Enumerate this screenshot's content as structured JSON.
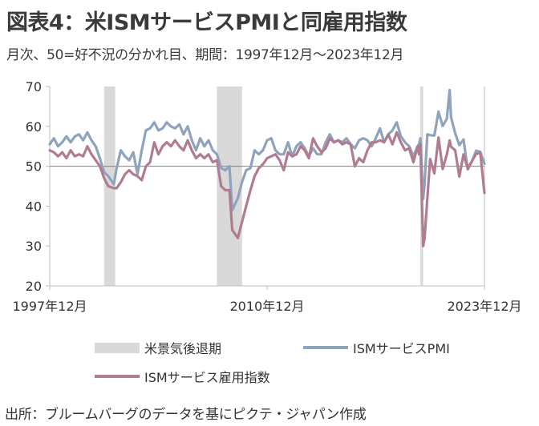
{
  "header": {
    "title": "図表4：米ISMサービスPMIと同雇用指数",
    "subtitle": "月次、50=好不況の分かれ目、期間：1997年12月～2023年12月"
  },
  "footer": {
    "source": "出所：ブルームバーグのデータを基にピクテ・ジャパン作成"
  },
  "chart_data": {
    "type": "line",
    "title": "図表4：米ISMサービスPMIと同雇用指数",
    "subtitle": "月次、50=好不況の分かれ目、期間：1997年12月～2023年12月",
    "xlim": [
      "1997-12",
      "2023-12"
    ],
    "x_tick_labels": [
      "1997年12月",
      "2010年12月",
      "2023年12月"
    ],
    "ylim": [
      20,
      70
    ],
    "y_ticks": [
      20,
      30,
      40,
      50,
      60,
      70
    ],
    "reference_line": 50,
    "grid": false,
    "legend_position": "bottom",
    "recessions": {
      "name": "米景気後退期",
      "color": "#d9d9d9",
      "periods": [
        [
          "2001-03",
          "2001-11"
        ],
        [
          "2007-12",
          "2009-06"
        ],
        [
          "2020-02",
          "2020-04"
        ]
      ]
    },
    "series": [
      {
        "name": "ISMサービスPMI",
        "color": "#8fa3bd",
        "points": [
          [
            "1997-12",
            55.5
          ],
          [
            "1998-03",
            57
          ],
          [
            "1998-06",
            55
          ],
          [
            "1998-09",
            56
          ],
          [
            "1998-12",
            57.5
          ],
          [
            "1999-03",
            56
          ],
          [
            "1999-06",
            57.5
          ],
          [
            "1999-09",
            58
          ],
          [
            "1999-12",
            56.5
          ],
          [
            "2000-03",
            58.5
          ],
          [
            "2000-06",
            56.5
          ],
          [
            "2000-09",
            55
          ],
          [
            "2000-12",
            52
          ],
          [
            "2001-03",
            48.5
          ],
          [
            "2001-06",
            47.5
          ],
          [
            "2001-10",
            45.5
          ],
          [
            "2001-12",
            49.5
          ],
          [
            "2002-03",
            54
          ],
          [
            "2002-06",
            52.5
          ],
          [
            "2002-09",
            51.5
          ],
          [
            "2002-12",
            53.5
          ],
          [
            "2003-03",
            48
          ],
          [
            "2003-06",
            54
          ],
          [
            "2003-09",
            59
          ],
          [
            "2003-12",
            59.5
          ],
          [
            "2004-03",
            61
          ],
          [
            "2004-06",
            59
          ],
          [
            "2004-09",
            59.5
          ],
          [
            "2004-12",
            61
          ],
          [
            "2005-03",
            60
          ],
          [
            "2005-06",
            59.5
          ],
          [
            "2005-09",
            60.5
          ],
          [
            "2005-12",
            58
          ],
          [
            "2006-03",
            60
          ],
          [
            "2006-06",
            56.5
          ],
          [
            "2006-09",
            54
          ],
          [
            "2006-12",
            57
          ],
          [
            "2007-03",
            55
          ],
          [
            "2007-06",
            56.5
          ],
          [
            "2007-09",
            54
          ],
          [
            "2007-12",
            53
          ],
          [
            "2008-03",
            49.5
          ],
          [
            "2008-06",
            49
          ],
          [
            "2008-09",
            50
          ],
          [
            "2008-11",
            39
          ],
          [
            "2009-03",
            42
          ],
          [
            "2009-06",
            46
          ],
          [
            "2009-09",
            49
          ],
          [
            "2009-12",
            49.5
          ],
          [
            "2010-03",
            54
          ],
          [
            "2010-06",
            53
          ],
          [
            "2010-09",
            54
          ],
          [
            "2010-12",
            56.5
          ],
          [
            "2011-03",
            57
          ],
          [
            "2011-06",
            54
          ],
          [
            "2011-09",
            53
          ],
          [
            "2011-12",
            53
          ],
          [
            "2012-03",
            56
          ],
          [
            "2012-06",
            52.5
          ],
          [
            "2012-09",
            55
          ],
          [
            "2012-12",
            56
          ],
          [
            "2013-03",
            54.5
          ],
          [
            "2013-06",
            52.5
          ],
          [
            "2013-09",
            54.5
          ],
          [
            "2013-12",
            53
          ],
          [
            "2014-03",
            53
          ],
          [
            "2014-06",
            56
          ],
          [
            "2014-09",
            58
          ],
          [
            "2014-12",
            56
          ],
          [
            "2015-03",
            56.5
          ],
          [
            "2015-06",
            56
          ],
          [
            "2015-09",
            57
          ],
          [
            "2015-12",
            55.5
          ],
          [
            "2016-03",
            54.5
          ],
          [
            "2016-06",
            56.5
          ],
          [
            "2016-09",
            57
          ],
          [
            "2016-12",
            56.5
          ],
          [
            "2017-03",
            55
          ],
          [
            "2017-06",
            57
          ],
          [
            "2017-09",
            59.5
          ],
          [
            "2017-12",
            56
          ],
          [
            "2018-03",
            58
          ],
          [
            "2018-06",
            59
          ],
          [
            "2018-09",
            61
          ],
          [
            "2018-12",
            57.5
          ],
          [
            "2019-03",
            56
          ],
          [
            "2019-06",
            55
          ],
          [
            "2019-09",
            52.5
          ],
          [
            "2019-12",
            55
          ],
          [
            "2020-01",
            55.5
          ],
          [
            "2020-02",
            57
          ],
          [
            "2020-04",
            41.8
          ],
          [
            "2020-05",
            45.4
          ],
          [
            "2020-07",
            58
          ],
          [
            "2020-09",
            57.8
          ],
          [
            "2020-12",
            57.7
          ],
          [
            "2021-03",
            63.7
          ],
          [
            "2021-06",
            60.1
          ],
          [
            "2021-09",
            61.9
          ],
          [
            "2021-11",
            69.1
          ],
          [
            "2021-12",
            62.3
          ],
          [
            "2022-03",
            58.3
          ],
          [
            "2022-06",
            55.3
          ],
          [
            "2022-09",
            56.7
          ],
          [
            "2022-12",
            49.2
          ],
          [
            "2023-03",
            51.2
          ],
          [
            "2023-06",
            53.9
          ],
          [
            "2023-09",
            53.6
          ],
          [
            "2023-12",
            50.6
          ]
        ]
      },
      {
        "name": "ISMサービス雇用指数",
        "color": "#b07d90",
        "points": [
          [
            "1997-12",
            54
          ],
          [
            "1998-03",
            53.5
          ],
          [
            "1998-06",
            52.5
          ],
          [
            "1998-09",
            53.5
          ],
          [
            "1998-12",
            52
          ],
          [
            "1999-03",
            54
          ],
          [
            "1999-06",
            52.5
          ],
          [
            "1999-09",
            53
          ],
          [
            "1999-12",
            52.5
          ],
          [
            "2000-03",
            55
          ],
          [
            "2000-06",
            53
          ],
          [
            "2000-09",
            51.5
          ],
          [
            "2000-12",
            50
          ],
          [
            "2001-03",
            47
          ],
          [
            "2001-06",
            45
          ],
          [
            "2001-10",
            44.5
          ],
          [
            "2001-12",
            44.5
          ],
          [
            "2002-03",
            46
          ],
          [
            "2002-06",
            48
          ],
          [
            "2002-09",
            49
          ],
          [
            "2002-12",
            48
          ],
          [
            "2003-03",
            47.5
          ],
          [
            "2003-06",
            46.5
          ],
          [
            "2003-09",
            50
          ],
          [
            "2003-12",
            51
          ],
          [
            "2004-03",
            56
          ],
          [
            "2004-06",
            53
          ],
          [
            "2004-09",
            55
          ],
          [
            "2004-12",
            56
          ],
          [
            "2005-03",
            55
          ],
          [
            "2005-06",
            56.5
          ],
          [
            "2005-09",
            55
          ],
          [
            "2005-12",
            54
          ],
          [
            "2006-03",
            56.5
          ],
          [
            "2006-06",
            54
          ],
          [
            "2006-09",
            52
          ],
          [
            "2006-12",
            53
          ],
          [
            "2007-03",
            52
          ],
          [
            "2007-06",
            53
          ],
          [
            "2007-09",
            51
          ],
          [
            "2007-12",
            51.5
          ],
          [
            "2008-03",
            45
          ],
          [
            "2008-06",
            44
          ],
          [
            "2008-09",
            44
          ],
          [
            "2008-11",
            34
          ],
          [
            "2009-03",
            32
          ],
          [
            "2009-06",
            36
          ],
          [
            "2009-09",
            40
          ],
          [
            "2009-12",
            44
          ],
          [
            "2010-03",
            47.5
          ],
          [
            "2010-06",
            49.5
          ],
          [
            "2010-09",
            50.5
          ],
          [
            "2010-12",
            52
          ],
          [
            "2011-03",
            52.5
          ],
          [
            "2011-06",
            53
          ],
          [
            "2011-09",
            51.5
          ],
          [
            "2011-12",
            49
          ],
          [
            "2012-03",
            53.5
          ],
          [
            "2012-06",
            52.5
          ],
          [
            "2012-09",
            53
          ],
          [
            "2012-12",
            55
          ],
          [
            "2013-03",
            54
          ],
          [
            "2013-06",
            52
          ],
          [
            "2013-09",
            57
          ],
          [
            "2013-12",
            55
          ],
          [
            "2014-03",
            53.5
          ],
          [
            "2014-06",
            54.5
          ],
          [
            "2014-09",
            57
          ],
          [
            "2014-12",
            56
          ],
          [
            "2015-03",
            56.5
          ],
          [
            "2015-06",
            55.5
          ],
          [
            "2015-09",
            56
          ],
          [
            "2015-12",
            55.5
          ],
          [
            "2016-03",
            50
          ],
          [
            "2016-06",
            52
          ],
          [
            "2016-09",
            51
          ],
          [
            "2016-12",
            54
          ],
          [
            "2017-03",
            56
          ],
          [
            "2017-06",
            56
          ],
          [
            "2017-09",
            56.5
          ],
          [
            "2017-12",
            56
          ],
          [
            "2018-03",
            58
          ],
          [
            "2018-06",
            55.5
          ],
          [
            "2018-09",
            58.5
          ],
          [
            "2018-12",
            56
          ],
          [
            "2019-03",
            54
          ],
          [
            "2019-06",
            54.5
          ],
          [
            "2019-09",
            51
          ],
          [
            "2019-12",
            55
          ],
          [
            "2020-01",
            53
          ],
          [
            "2020-02",
            55.5
          ],
          [
            "2020-04",
            30
          ],
          [
            "2020-05",
            31.8
          ],
          [
            "2020-07",
            42
          ],
          [
            "2020-09",
            51.8
          ],
          [
            "2020-12",
            48.2
          ],
          [
            "2021-03",
            57.2
          ],
          [
            "2021-06",
            49.3
          ],
          [
            "2021-09",
            53
          ],
          [
            "2021-11",
            56.5
          ],
          [
            "2021-12",
            54.9
          ],
          [
            "2022-03",
            54
          ],
          [
            "2022-06",
            47.4
          ],
          [
            "2022-09",
            53
          ],
          [
            "2022-12",
            49.4
          ],
          [
            "2023-03",
            51.3
          ],
          [
            "2023-06",
            53.1
          ],
          [
            "2023-09",
            53.4
          ],
          [
            "2023-12",
            43.3
          ]
        ]
      }
    ]
  },
  "legend": {
    "recession_label": "米景気後退期",
    "pmi_label": "ISMサービスPMI",
    "employment_label": "ISMサービス雇用指数"
  }
}
